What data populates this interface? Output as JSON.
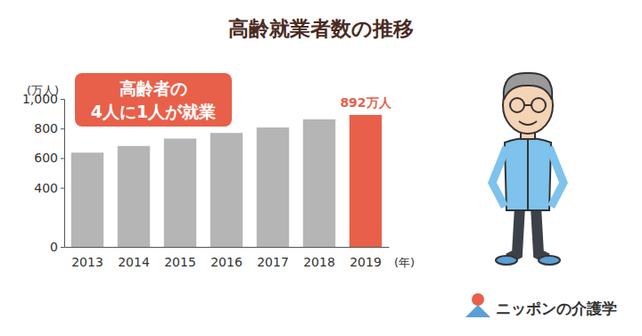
{
  "chart_data": {
    "type": "bar",
    "title": "高齢就業者数の推移",
    "categories": [
      "2013",
      "2014",
      "2015",
      "2016",
      "2017",
      "2018",
      "2019"
    ],
    "values": [
      637,
      682,
      732,
      770,
      807,
      862,
      892
    ],
    "value_labels": [
      null,
      null,
      null,
      null,
      null,
      null,
      "892万人"
    ],
    "data_labels": true,
    "colors": [
      "#b5b5b5",
      "#b5b5b5",
      "#b5b5b5",
      "#b5b5b5",
      "#b5b5b5",
      "#b5b5b5",
      "#e8604a"
    ],
    "y_label": "(万人)",
    "x_label": "(年)",
    "ylim": [
      0,
      1000
    ],
    "yticks": [
      0,
      400,
      600,
      800,
      {
        "value": 1000,
        "label": "1,000"
      }
    ],
    "grid": false,
    "annotations": [
      "高齢者の",
      "4人に1人が就業"
    ],
    "logo": "ニッポンの介護学"
  }
}
